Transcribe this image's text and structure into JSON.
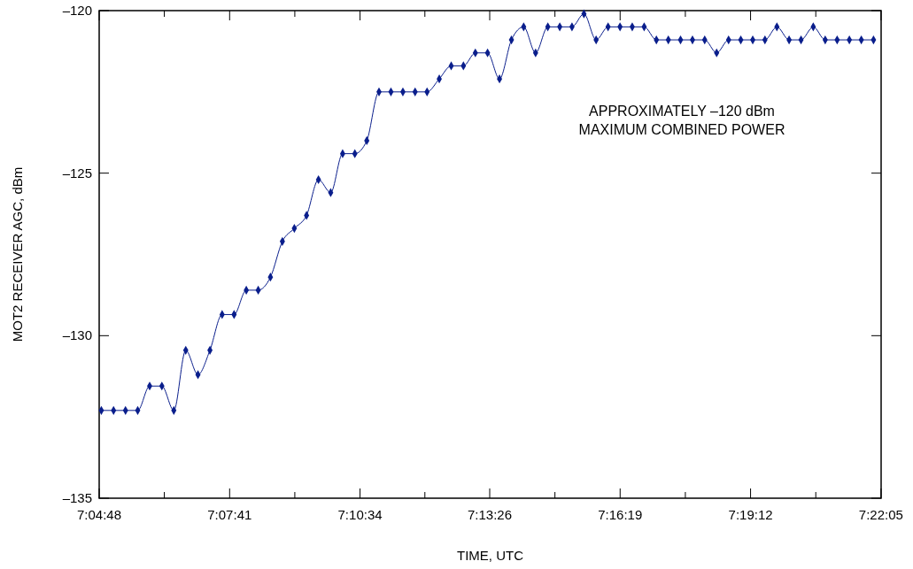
{
  "chart_data": {
    "type": "line",
    "xlabel": "TIME, UTC",
    "ylabel": "MOT2 RECEIVER AGC, dBm",
    "annotations": [
      "APPROXIMATELY –120 dBm\nMAXIMUM COMBINED POWER"
    ],
    "xlim": [
      7.08,
      7.3681
    ],
    "xticks": [
      {
        "value": 7.08,
        "label": "7:04:48"
      },
      {
        "value": 7.104,
        "label": null
      },
      {
        "value": 7.12806,
        "label": "7:07:41"
      },
      {
        "value": 7.15208,
        "label": null
      },
      {
        "value": 7.17611,
        "label": "7:10:34"
      },
      {
        "value": 7.2,
        "label": null
      },
      {
        "value": 7.22389,
        "label": "7:13:26"
      },
      {
        "value": 7.24792,
        "label": null
      },
      {
        "value": 7.27194,
        "label": "7:16:19"
      },
      {
        "value": 7.29597,
        "label": null
      },
      {
        "value": 7.32,
        "label": "7:19:12"
      },
      {
        "value": 7.34403,
        "label": null
      },
      {
        "value": 7.36806,
        "label": "7:22:05"
      }
    ],
    "ylim": [
      -135,
      -120
    ],
    "yticks": [
      {
        "value": -135,
        "label": "–135"
      },
      {
        "value": -130,
        "label": "–130"
      },
      {
        "value": -125,
        "label": "–125"
      },
      {
        "value": -120,
        "label": "–120"
      }
    ],
    "grid": false,
    "marker": "diamond",
    "line_style": "solid",
    "series": [
      {
        "color": "#0a1e8c",
        "x": [
          7.0808,
          7.0853,
          7.0897,
          7.0942,
          7.0986,
          7.1031,
          7.1075,
          7.1119,
          7.1164,
          7.1208,
          7.1253,
          7.1297,
          7.1342,
          7.1386,
          7.1431,
          7.1475,
          7.1519,
          7.1564,
          7.1608,
          7.1653,
          7.1697,
          7.1742,
          7.1786,
          7.1831,
          7.1875,
          7.1919,
          7.1964,
          7.2008,
          7.2053,
          7.2097,
          7.2142,
          7.2186,
          7.2231,
          7.2275,
          7.2319,
          7.2364,
          7.2408,
          7.2453,
          7.2497,
          7.2542,
          7.2586,
          7.2631,
          7.2675,
          7.2719,
          7.2764,
          7.2808,
          7.2853,
          7.2897,
          7.2942,
          7.2986,
          7.3031,
          7.3075,
          7.3119,
          7.3164,
          7.3208,
          7.3253,
          7.3297,
          7.3342,
          7.3386,
          7.3431,
          7.3475,
          7.3519,
          7.3564,
          7.3608,
          7.3653
        ],
        "values": [
          -132.3,
          -132.3,
          -132.3,
          -132.3,
          -131.55,
          -131.55,
          -132.3,
          -130.45,
          -131.2,
          -130.45,
          -129.35,
          -129.35,
          -128.6,
          -128.6,
          -128.2,
          -127.1,
          -126.7,
          -126.3,
          -125.2,
          -125.6,
          -124.4,
          -124.4,
          -124.0,
          -122.5,
          -122.5,
          -122.5,
          -122.5,
          -122.5,
          -122.1,
          -121.7,
          -121.7,
          -121.3,
          -121.3,
          -122.1,
          -120.9,
          -120.5,
          -121.3,
          -120.5,
          -120.5,
          -120.5,
          -120.1,
          -120.9,
          -120.5,
          -120.5,
          -120.5,
          -120.5,
          -120.9,
          -120.9,
          -120.9,
          -120.9,
          -120.9,
          -121.3,
          -120.9,
          -120.9,
          -120.9,
          -120.9,
          -120.5,
          -120.9,
          -120.9,
          -120.5,
          -120.9,
          -120.9,
          -120.9,
          -120.9,
          -120.9
        ]
      }
    ]
  }
}
